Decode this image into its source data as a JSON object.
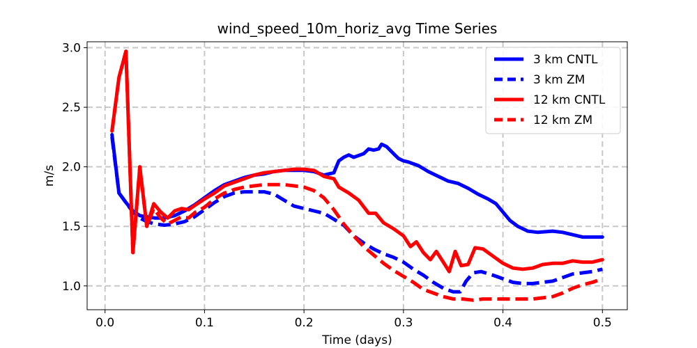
{
  "chart_data": {
    "type": "line",
    "title": "wind_speed_10m_horiz_avg Time Series",
    "xlabel": "Time (days)",
    "ylabel": "m/s",
    "xlim": [
      -0.018,
      0.525
    ],
    "ylim": [
      0.8,
      3.05
    ],
    "xticks": [
      0.0,
      0.1,
      0.2,
      0.3,
      0.4,
      0.5
    ],
    "xtick_labels": [
      "0.0",
      "0.1",
      "0.2",
      "0.3",
      "0.4",
      "0.5"
    ],
    "yticks": [
      1.0,
      1.5,
      2.0,
      2.5,
      3.0
    ],
    "ytick_labels": [
      "1.0",
      "1.5",
      "2.0",
      "2.5",
      "3.0"
    ],
    "grid": true,
    "legend_position": "top-right",
    "series": [
      {
        "name": "3 km CNTL",
        "color": "#0000ff",
        "style": "solid",
        "points": [
          [
            0.007,
            2.27
          ],
          [
            0.014,
            1.78
          ],
          [
            0.021,
            1.7
          ],
          [
            0.028,
            1.63
          ],
          [
            0.035,
            1.59
          ],
          [
            0.042,
            1.58
          ],
          [
            0.05,
            1.57
          ],
          [
            0.06,
            1.57
          ],
          [
            0.07,
            1.59
          ],
          [
            0.08,
            1.63
          ],
          [
            0.09,
            1.68
          ],
          [
            0.1,
            1.74
          ],
          [
            0.11,
            1.8
          ],
          [
            0.12,
            1.85
          ],
          [
            0.13,
            1.88
          ],
          [
            0.14,
            1.91
          ],
          [
            0.15,
            1.93
          ],
          [
            0.16,
            1.94
          ],
          [
            0.17,
            1.96
          ],
          [
            0.18,
            1.97
          ],
          [
            0.19,
            1.97
          ],
          [
            0.2,
            1.97
          ],
          [
            0.21,
            1.96
          ],
          [
            0.22,
            1.93
          ],
          [
            0.23,
            1.95
          ],
          [
            0.235,
            2.05
          ],
          [
            0.24,
            2.08
          ],
          [
            0.245,
            2.1
          ],
          [
            0.25,
            2.08
          ],
          [
            0.26,
            2.11
          ],
          [
            0.265,
            2.15
          ],
          [
            0.27,
            2.14
          ],
          [
            0.275,
            2.15
          ],
          [
            0.278,
            2.19
          ],
          [
            0.283,
            2.17
          ],
          [
            0.29,
            2.11
          ],
          [
            0.295,
            2.07
          ],
          [
            0.3,
            2.05
          ],
          [
            0.305,
            2.04
          ],
          [
            0.315,
            2.01
          ],
          [
            0.325,
            1.96
          ],
          [
            0.335,
            1.92
          ],
          [
            0.345,
            1.88
          ],
          [
            0.355,
            1.86
          ],
          [
            0.365,
            1.82
          ],
          [
            0.375,
            1.77
          ],
          [
            0.385,
            1.73
          ],
          [
            0.393,
            1.69
          ],
          [
            0.4,
            1.62
          ],
          [
            0.407,
            1.55
          ],
          [
            0.415,
            1.5
          ],
          [
            0.425,
            1.46
          ],
          [
            0.435,
            1.45
          ],
          [
            0.45,
            1.46
          ],
          [
            0.46,
            1.45
          ],
          [
            0.47,
            1.43
          ],
          [
            0.48,
            1.41
          ],
          [
            0.49,
            1.41
          ],
          [
            0.5,
            1.41
          ]
        ]
      },
      {
        "name": "3 km ZM",
        "color": "#0000ff",
        "style": "dashed",
        "points": [
          [
            0.007,
            2.25
          ],
          [
            0.014,
            1.78
          ],
          [
            0.021,
            1.7
          ],
          [
            0.028,
            1.62
          ],
          [
            0.035,
            1.57
          ],
          [
            0.042,
            1.54
          ],
          [
            0.05,
            1.52
          ],
          [
            0.06,
            1.51
          ],
          [
            0.07,
            1.52
          ],
          [
            0.08,
            1.54
          ],
          [
            0.09,
            1.58
          ],
          [
            0.1,
            1.64
          ],
          [
            0.11,
            1.7
          ],
          [
            0.12,
            1.75
          ],
          [
            0.13,
            1.78
          ],
          [
            0.14,
            1.79
          ],
          [
            0.15,
            1.79
          ],
          [
            0.16,
            1.79
          ],
          [
            0.17,
            1.77
          ],
          [
            0.18,
            1.72
          ],
          [
            0.19,
            1.67
          ],
          [
            0.2,
            1.65
          ],
          [
            0.21,
            1.63
          ],
          [
            0.22,
            1.61
          ],
          [
            0.23,
            1.56
          ],
          [
            0.24,
            1.51
          ],
          [
            0.25,
            1.42
          ],
          [
            0.26,
            1.36
          ],
          [
            0.27,
            1.31
          ],
          [
            0.28,
            1.27
          ],
          [
            0.29,
            1.24
          ],
          [
            0.3,
            1.2
          ],
          [
            0.31,
            1.14
          ],
          [
            0.32,
            1.09
          ],
          [
            0.33,
            1.03
          ],
          [
            0.34,
            0.98
          ],
          [
            0.35,
            0.95
          ],
          [
            0.357,
            0.95
          ],
          [
            0.363,
            1.04
          ],
          [
            0.37,
            1.11
          ],
          [
            0.378,
            1.12
          ],
          [
            0.39,
            1.09
          ],
          [
            0.4,
            1.06
          ],
          [
            0.41,
            1.03
          ],
          [
            0.42,
            1.02
          ],
          [
            0.43,
            1.02
          ],
          [
            0.44,
            1.03
          ],
          [
            0.45,
            1.04
          ],
          [
            0.46,
            1.07
          ],
          [
            0.47,
            1.1
          ],
          [
            0.48,
            1.11
          ],
          [
            0.49,
            1.12
          ],
          [
            0.5,
            1.14
          ]
        ]
      },
      {
        "name": "12 km CNTL",
        "color": "#ff0000",
        "style": "solid",
        "points": [
          [
            0.007,
            2.3
          ],
          [
            0.014,
            2.75
          ],
          [
            0.021,
            2.97
          ],
          [
            0.028,
            1.28
          ],
          [
            0.035,
            2.0
          ],
          [
            0.042,
            1.5
          ],
          [
            0.049,
            1.69
          ],
          [
            0.056,
            1.62
          ],
          [
            0.063,
            1.57
          ],
          [
            0.07,
            1.63
          ],
          [
            0.077,
            1.65
          ],
          [
            0.084,
            1.64
          ],
          [
            0.091,
            1.68
          ],
          [
            0.1,
            1.73
          ],
          [
            0.11,
            1.78
          ],
          [
            0.12,
            1.84
          ],
          [
            0.13,
            1.87
          ],
          [
            0.14,
            1.9
          ],
          [
            0.15,
            1.93
          ],
          [
            0.16,
            1.95
          ],
          [
            0.17,
            1.96
          ],
          [
            0.18,
            1.97
          ],
          [
            0.19,
            1.98
          ],
          [
            0.2,
            1.98
          ],
          [
            0.21,
            1.97
          ],
          [
            0.22,
            1.92
          ],
          [
            0.23,
            1.9
          ],
          [
            0.235,
            1.83
          ],
          [
            0.245,
            1.78
          ],
          [
            0.255,
            1.72
          ],
          [
            0.265,
            1.61
          ],
          [
            0.272,
            1.61
          ],
          [
            0.28,
            1.53
          ],
          [
            0.29,
            1.48
          ],
          [
            0.3,
            1.42
          ],
          [
            0.307,
            1.33
          ],
          [
            0.313,
            1.37
          ],
          [
            0.32,
            1.28
          ],
          [
            0.327,
            1.22
          ],
          [
            0.333,
            1.29
          ],
          [
            0.34,
            1.2
          ],
          [
            0.346,
            1.12
          ],
          [
            0.352,
            1.29
          ],
          [
            0.358,
            1.17
          ],
          [
            0.365,
            1.18
          ],
          [
            0.372,
            1.32
          ],
          [
            0.38,
            1.31
          ],
          [
            0.39,
            1.25
          ],
          [
            0.4,
            1.19
          ],
          [
            0.41,
            1.15
          ],
          [
            0.42,
            1.14
          ],
          [
            0.43,
            1.15
          ],
          [
            0.44,
            1.18
          ],
          [
            0.45,
            1.19
          ],
          [
            0.46,
            1.19
          ],
          [
            0.47,
            1.21
          ],
          [
            0.48,
            1.2
          ],
          [
            0.49,
            1.2
          ],
          [
            0.5,
            1.22
          ]
        ]
      },
      {
        "name": "12 km ZM",
        "color": "#ff0000",
        "style": "dashed",
        "points": [
          [
            0.007,
            2.3
          ],
          [
            0.014,
            2.75
          ],
          [
            0.021,
            2.97
          ],
          [
            0.028,
            1.28
          ],
          [
            0.035,
            2.0
          ],
          [
            0.042,
            1.5
          ],
          [
            0.049,
            1.65
          ],
          [
            0.056,
            1.57
          ],
          [
            0.063,
            1.52
          ],
          [
            0.07,
            1.55
          ],
          [
            0.077,
            1.58
          ],
          [
            0.084,
            1.57
          ],
          [
            0.091,
            1.62
          ],
          [
            0.1,
            1.66
          ],
          [
            0.11,
            1.73
          ],
          [
            0.12,
            1.78
          ],
          [
            0.13,
            1.81
          ],
          [
            0.14,
            1.83
          ],
          [
            0.15,
            1.84
          ],
          [
            0.16,
            1.85
          ],
          [
            0.17,
            1.85
          ],
          [
            0.18,
            1.85
          ],
          [
            0.19,
            1.84
          ],
          [
            0.2,
            1.83
          ],
          [
            0.21,
            1.8
          ],
          [
            0.22,
            1.74
          ],
          [
            0.23,
            1.64
          ],
          [
            0.24,
            1.52
          ],
          [
            0.25,
            1.42
          ],
          [
            0.26,
            1.33
          ],
          [
            0.27,
            1.26
          ],
          [
            0.28,
            1.19
          ],
          [
            0.29,
            1.13
          ],
          [
            0.3,
            1.08
          ],
          [
            0.31,
            1.03
          ],
          [
            0.32,
            0.97
          ],
          [
            0.33,
            0.94
          ],
          [
            0.34,
            0.91
          ],
          [
            0.35,
            0.89
          ],
          [
            0.36,
            0.89
          ],
          [
            0.37,
            0.88
          ],
          [
            0.38,
            0.89
          ],
          [
            0.39,
            0.89
          ],
          [
            0.4,
            0.89
          ],
          [
            0.41,
            0.89
          ],
          [
            0.42,
            0.89
          ],
          [
            0.43,
            0.89
          ],
          [
            0.44,
            0.9
          ],
          [
            0.45,
            0.91
          ],
          [
            0.46,
            0.94
          ],
          [
            0.47,
            0.98
          ],
          [
            0.48,
            1.01
          ],
          [
            0.49,
            1.03
          ],
          [
            0.5,
            1.06
          ]
        ]
      }
    ]
  }
}
